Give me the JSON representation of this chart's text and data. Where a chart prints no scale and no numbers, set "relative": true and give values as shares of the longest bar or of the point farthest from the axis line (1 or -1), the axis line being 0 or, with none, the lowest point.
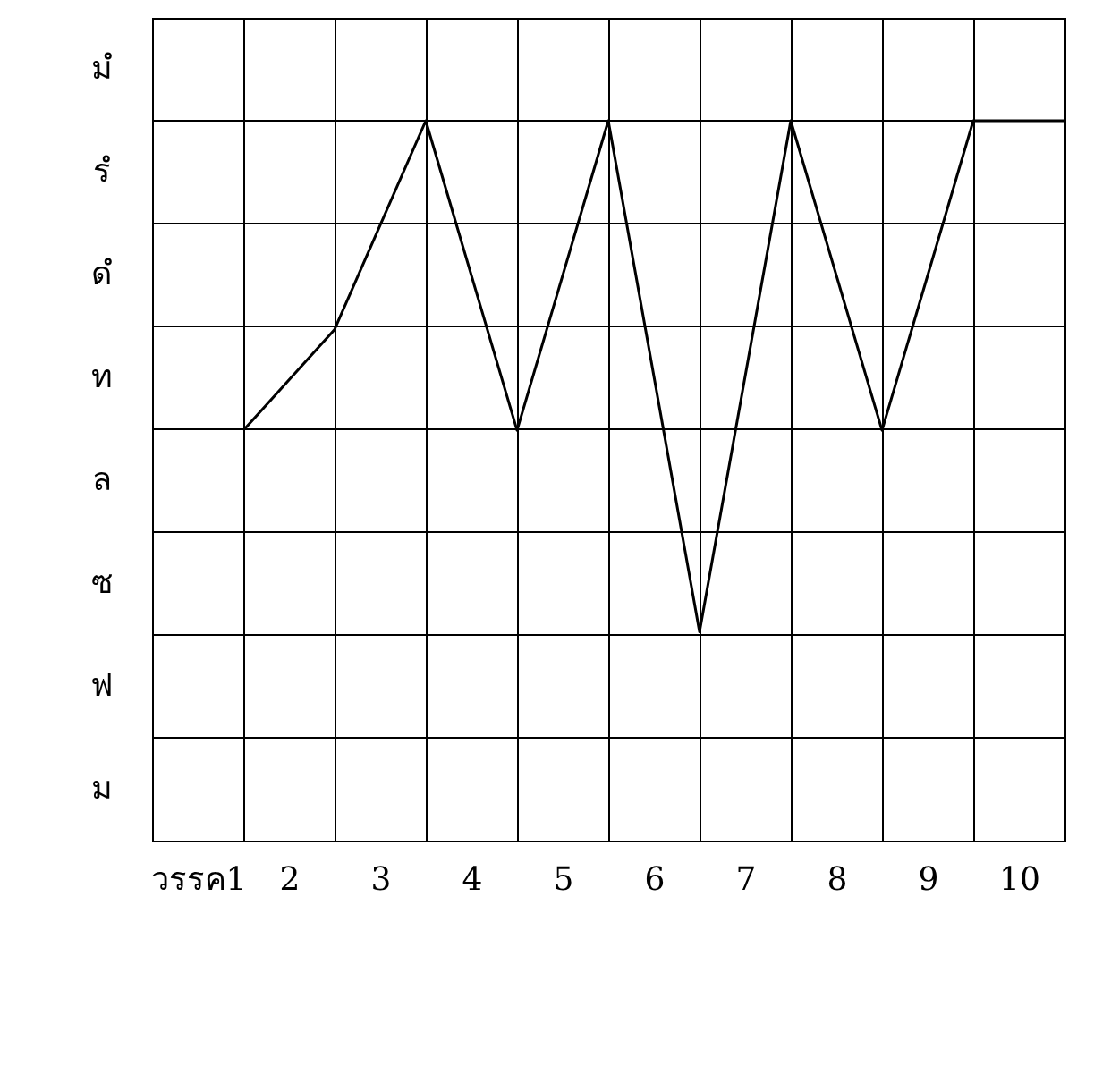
{
  "chart_data": {
    "type": "line",
    "x": [
      1,
      2,
      3,
      4,
      5,
      6,
      7,
      8,
      9,
      10
    ],
    "series": [
      {
        "color": "#000000",
        "values": [
          0.57,
          0.71,
          1,
          0.57,
          1,
          0.29,
          1,
          0.57,
          1,
          1
        ]
      }
    ],
    "relative": true,
    "xlim": [
      0,
      10
    ],
    "xticks": [
      {
        "value": 0,
        "label": null
      },
      {
        "value": 0.5,
        "label": "วรรค1"
      },
      {
        "value": 1,
        "label": null
      },
      {
        "value": 1.5,
        "label": "2"
      },
      {
        "value": 2,
        "label": null
      },
      {
        "value": 2.5,
        "label": "3"
      },
      {
        "value": 3,
        "label": null
      },
      {
        "value": 3.5,
        "label": "4"
      },
      {
        "value": 4,
        "label": null
      },
      {
        "value": 4.5,
        "label": "5"
      },
      {
        "value": 5,
        "label": null
      },
      {
        "value": 5.5,
        "label": "6"
      },
      {
        "value": 6,
        "label": null
      },
      {
        "value": 6.5,
        "label": "7"
      },
      {
        "value": 7,
        "label": null
      },
      {
        "value": 7.5,
        "label": "8"
      },
      {
        "value": 8,
        "label": null
      },
      {
        "value": 8.5,
        "label": "9"
      },
      {
        "value": 9,
        "label": null
      },
      {
        "value": 9.5,
        "label": "10"
      },
      {
        "value": 10,
        "label": null
      }
    ],
    "annotations": [
      "มํ",
      "รํ",
      "ดํ",
      "ท",
      "ล",
      "ซ",
      "ฟ",
      "ม"
    ],
    "grid": true,
    "marker": "none",
    "line_style": "solid"
  }
}
